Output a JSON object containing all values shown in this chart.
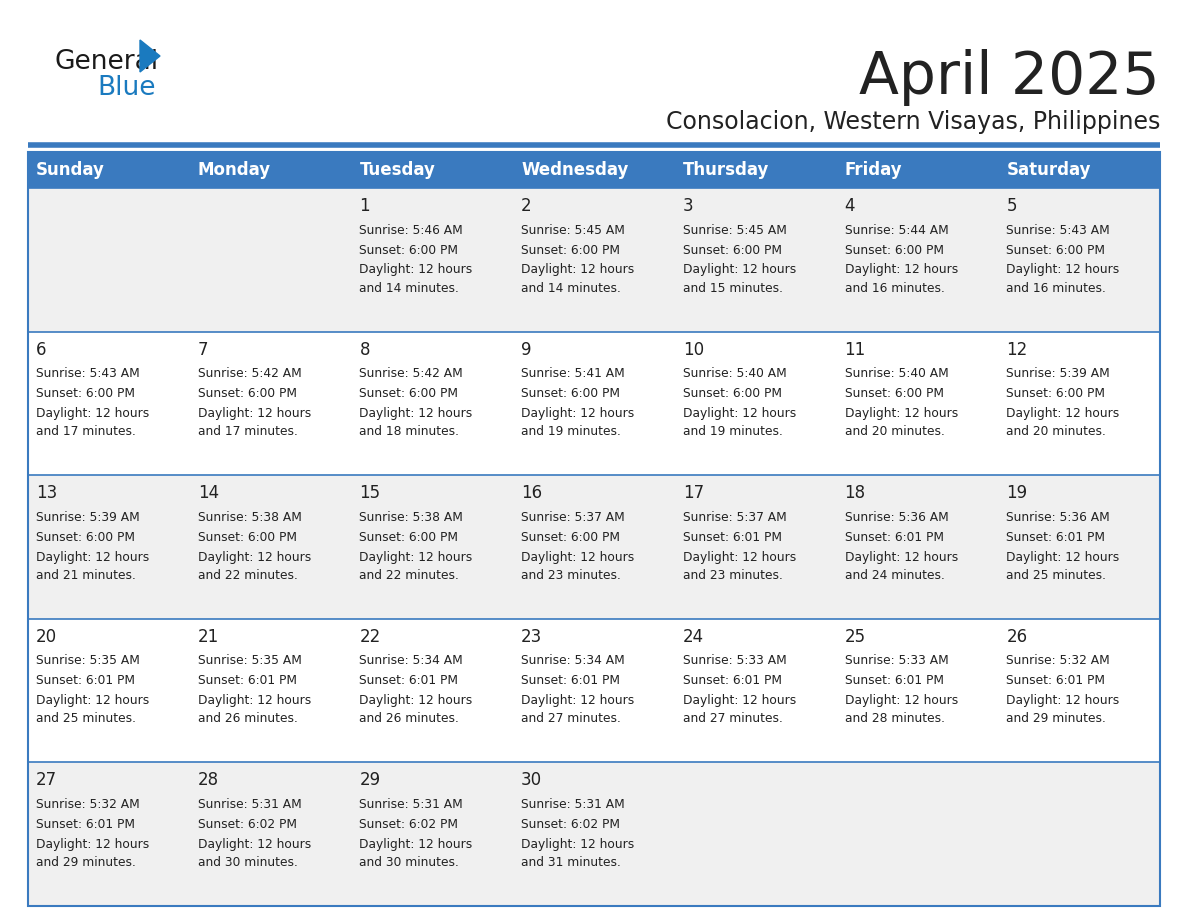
{
  "title": "April 2025",
  "subtitle": "Consolacion, Western Visayas, Philippines",
  "header_bg": "#3a7abf",
  "header_text_color": "#ffffff",
  "row_bg_odd": "#f0f0f0",
  "row_bg_even": "#ffffff",
  "border_color": "#3a7abf",
  "text_color": "#222222",
  "days_of_week": [
    "Sunday",
    "Monday",
    "Tuesday",
    "Wednesday",
    "Thursday",
    "Friday",
    "Saturday"
  ],
  "calendar_data": [
    [
      {
        "day": "",
        "sunrise": "",
        "sunset": "",
        "daylight": ""
      },
      {
        "day": "",
        "sunrise": "",
        "sunset": "",
        "daylight": ""
      },
      {
        "day": "1",
        "sunrise": "Sunrise: 5:46 AM",
        "sunset": "Sunset: 6:00 PM",
        "daylight": "Daylight: 12 hours\nand 14 minutes."
      },
      {
        "day": "2",
        "sunrise": "Sunrise: 5:45 AM",
        "sunset": "Sunset: 6:00 PM",
        "daylight": "Daylight: 12 hours\nand 14 minutes."
      },
      {
        "day": "3",
        "sunrise": "Sunrise: 5:45 AM",
        "sunset": "Sunset: 6:00 PM",
        "daylight": "Daylight: 12 hours\nand 15 minutes."
      },
      {
        "day": "4",
        "sunrise": "Sunrise: 5:44 AM",
        "sunset": "Sunset: 6:00 PM",
        "daylight": "Daylight: 12 hours\nand 16 minutes."
      },
      {
        "day": "5",
        "sunrise": "Sunrise: 5:43 AM",
        "sunset": "Sunset: 6:00 PM",
        "daylight": "Daylight: 12 hours\nand 16 minutes."
      }
    ],
    [
      {
        "day": "6",
        "sunrise": "Sunrise: 5:43 AM",
        "sunset": "Sunset: 6:00 PM",
        "daylight": "Daylight: 12 hours\nand 17 minutes."
      },
      {
        "day": "7",
        "sunrise": "Sunrise: 5:42 AM",
        "sunset": "Sunset: 6:00 PM",
        "daylight": "Daylight: 12 hours\nand 17 minutes."
      },
      {
        "day": "8",
        "sunrise": "Sunrise: 5:42 AM",
        "sunset": "Sunset: 6:00 PM",
        "daylight": "Daylight: 12 hours\nand 18 minutes."
      },
      {
        "day": "9",
        "sunrise": "Sunrise: 5:41 AM",
        "sunset": "Sunset: 6:00 PM",
        "daylight": "Daylight: 12 hours\nand 19 minutes."
      },
      {
        "day": "10",
        "sunrise": "Sunrise: 5:40 AM",
        "sunset": "Sunset: 6:00 PM",
        "daylight": "Daylight: 12 hours\nand 19 minutes."
      },
      {
        "day": "11",
        "sunrise": "Sunrise: 5:40 AM",
        "sunset": "Sunset: 6:00 PM",
        "daylight": "Daylight: 12 hours\nand 20 minutes."
      },
      {
        "day": "12",
        "sunrise": "Sunrise: 5:39 AM",
        "sunset": "Sunset: 6:00 PM",
        "daylight": "Daylight: 12 hours\nand 20 minutes."
      }
    ],
    [
      {
        "day": "13",
        "sunrise": "Sunrise: 5:39 AM",
        "sunset": "Sunset: 6:00 PM",
        "daylight": "Daylight: 12 hours\nand 21 minutes."
      },
      {
        "day": "14",
        "sunrise": "Sunrise: 5:38 AM",
        "sunset": "Sunset: 6:00 PM",
        "daylight": "Daylight: 12 hours\nand 22 minutes."
      },
      {
        "day": "15",
        "sunrise": "Sunrise: 5:38 AM",
        "sunset": "Sunset: 6:00 PM",
        "daylight": "Daylight: 12 hours\nand 22 minutes."
      },
      {
        "day": "16",
        "sunrise": "Sunrise: 5:37 AM",
        "sunset": "Sunset: 6:00 PM",
        "daylight": "Daylight: 12 hours\nand 23 minutes."
      },
      {
        "day": "17",
        "sunrise": "Sunrise: 5:37 AM",
        "sunset": "Sunset: 6:01 PM",
        "daylight": "Daylight: 12 hours\nand 23 minutes."
      },
      {
        "day": "18",
        "sunrise": "Sunrise: 5:36 AM",
        "sunset": "Sunset: 6:01 PM",
        "daylight": "Daylight: 12 hours\nand 24 minutes."
      },
      {
        "day": "19",
        "sunrise": "Sunrise: 5:36 AM",
        "sunset": "Sunset: 6:01 PM",
        "daylight": "Daylight: 12 hours\nand 25 minutes."
      }
    ],
    [
      {
        "day": "20",
        "sunrise": "Sunrise: 5:35 AM",
        "sunset": "Sunset: 6:01 PM",
        "daylight": "Daylight: 12 hours\nand 25 minutes."
      },
      {
        "day": "21",
        "sunrise": "Sunrise: 5:35 AM",
        "sunset": "Sunset: 6:01 PM",
        "daylight": "Daylight: 12 hours\nand 26 minutes."
      },
      {
        "day": "22",
        "sunrise": "Sunrise: 5:34 AM",
        "sunset": "Sunset: 6:01 PM",
        "daylight": "Daylight: 12 hours\nand 26 minutes."
      },
      {
        "day": "23",
        "sunrise": "Sunrise: 5:34 AM",
        "sunset": "Sunset: 6:01 PM",
        "daylight": "Daylight: 12 hours\nand 27 minutes."
      },
      {
        "day": "24",
        "sunrise": "Sunrise: 5:33 AM",
        "sunset": "Sunset: 6:01 PM",
        "daylight": "Daylight: 12 hours\nand 27 minutes."
      },
      {
        "day": "25",
        "sunrise": "Sunrise: 5:33 AM",
        "sunset": "Sunset: 6:01 PM",
        "daylight": "Daylight: 12 hours\nand 28 minutes."
      },
      {
        "day": "26",
        "sunrise": "Sunrise: 5:32 AM",
        "sunset": "Sunset: 6:01 PM",
        "daylight": "Daylight: 12 hours\nand 29 minutes."
      }
    ],
    [
      {
        "day": "27",
        "sunrise": "Sunrise: 5:32 AM",
        "sunset": "Sunset: 6:01 PM",
        "daylight": "Daylight: 12 hours\nand 29 minutes."
      },
      {
        "day": "28",
        "sunrise": "Sunrise: 5:31 AM",
        "sunset": "Sunset: 6:02 PM",
        "daylight": "Daylight: 12 hours\nand 30 minutes."
      },
      {
        "day": "29",
        "sunrise": "Sunrise: 5:31 AM",
        "sunset": "Sunset: 6:02 PM",
        "daylight": "Daylight: 12 hours\nand 30 minutes."
      },
      {
        "day": "30",
        "sunrise": "Sunrise: 5:31 AM",
        "sunset": "Sunset: 6:02 PM",
        "daylight": "Daylight: 12 hours\nand 31 minutes."
      },
      {
        "day": "",
        "sunrise": "",
        "sunset": "",
        "daylight": ""
      },
      {
        "day": "",
        "sunrise": "",
        "sunset": "",
        "daylight": ""
      },
      {
        "day": "",
        "sunrise": "",
        "sunset": "",
        "daylight": ""
      }
    ]
  ],
  "logo_general_color": "#1a1a1a",
  "logo_blue_color": "#1a7abf",
  "logo_triangle_color": "#1a7abf",
  "fig_width": 11.88,
  "fig_height": 9.18,
  "dpi": 100
}
